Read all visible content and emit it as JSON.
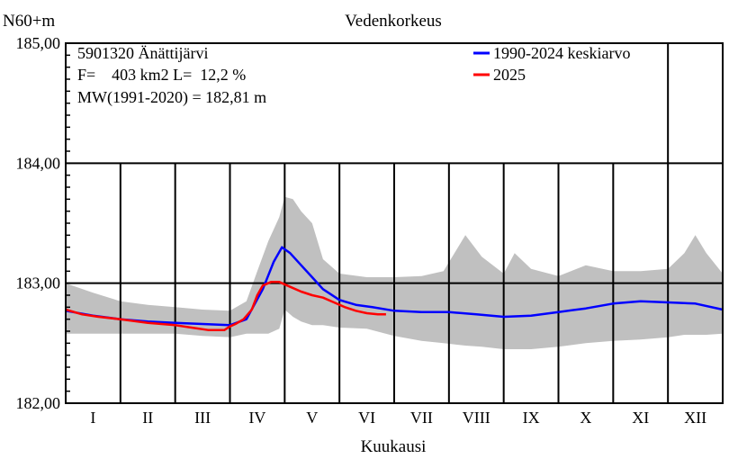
{
  "chart_data": {
    "type": "line",
    "title": "Vedenkorkeus",
    "ylabel": "N60+m",
    "xlabel": "Kuukausi",
    "ylim": [
      182.0,
      185.0
    ],
    "xlim": [
      0,
      12
    ],
    "yticks": [
      "182,00",
      "183,00",
      "184,00",
      "185,00"
    ],
    "categories": [
      "I",
      "II",
      "III",
      "IV",
      "V",
      "VI",
      "VII",
      "VIII",
      "IX",
      "X",
      "XI",
      "XII"
    ],
    "grid": true,
    "legend_position": "top-right",
    "info": [
      "5901320 Änättijärvi",
      "F=    403 km2 L=  12,2 %",
      "MW(1991-2020) = 182,81 m"
    ],
    "colors": {
      "mean": "#0000ff",
      "current": "#ff0000",
      "band": "#c0c0c0"
    },
    "band": {
      "x": [
        0,
        0.5,
        1,
        1.5,
        2,
        2.5,
        3,
        3.3,
        3.5,
        3.7,
        3.9,
        4.0,
        4.15,
        4.3,
        4.5,
        4.7,
        5,
        5.5,
        6,
        6.5,
        6.9,
        7.3,
        7.6,
        8,
        8.2,
        8.5,
        9,
        9.5,
        10,
        10.5,
        11,
        11.3,
        11.5,
        11.7,
        12
      ],
      "max": [
        183.0,
        182.92,
        182.85,
        182.82,
        182.8,
        182.78,
        182.77,
        182.85,
        183.1,
        183.35,
        183.55,
        183.72,
        183.7,
        183.6,
        183.5,
        183.2,
        183.08,
        183.05,
        183.05,
        183.06,
        183.1,
        183.4,
        183.22,
        183.08,
        183.25,
        183.12,
        183.06,
        183.15,
        183.1,
        183.1,
        183.12,
        183.25,
        183.4,
        183.25,
        183.08
      ],
      "min": [
        182.58,
        182.58,
        182.58,
        182.58,
        182.58,
        182.56,
        182.55,
        182.58,
        182.58,
        182.58,
        182.62,
        182.78,
        182.72,
        182.68,
        182.65,
        182.65,
        182.63,
        182.62,
        182.56,
        182.52,
        182.5,
        182.48,
        182.47,
        182.45,
        182.45,
        182.45,
        182.47,
        182.5,
        182.52,
        182.53,
        182.55,
        182.57,
        182.57,
        182.57,
        182.58
      ]
    },
    "series": [
      {
        "name": "1990-2024 keskiarvo",
        "x": [
          0,
          0.5,
          1,
          1.5,
          2,
          2.5,
          3,
          3.3,
          3.6,
          3.8,
          3.95,
          4.1,
          4.3,
          4.5,
          4.7,
          5,
          5.3,
          5.6,
          6,
          6.5,
          7,
          7.5,
          8,
          8.5,
          9,
          9.5,
          10,
          10.5,
          11,
          11.5,
          12
        ],
        "y": [
          182.77,
          182.73,
          182.7,
          182.68,
          182.67,
          182.66,
          182.65,
          182.7,
          182.95,
          183.18,
          183.3,
          183.25,
          183.15,
          183.05,
          182.95,
          182.86,
          182.82,
          182.8,
          182.77,
          182.76,
          182.76,
          182.74,
          182.72,
          182.73,
          182.76,
          182.79,
          182.83,
          182.85,
          182.84,
          182.83,
          182.78
        ]
      },
      {
        "name": "2025",
        "x": [
          0,
          0.3,
          0.6,
          1.0,
          1.5,
          2.0,
          2.3,
          2.6,
          2.9,
          3.0,
          3.1,
          3.25,
          3.4,
          3.5,
          3.6,
          3.75,
          3.9,
          4.1,
          4.3,
          4.5,
          4.7,
          4.9,
          5.1,
          5.3,
          5.5,
          5.7,
          5.85
        ],
        "y": [
          182.78,
          182.74,
          182.72,
          182.7,
          182.67,
          182.65,
          182.63,
          182.61,
          182.61,
          182.64,
          182.66,
          182.7,
          182.78,
          182.9,
          182.98,
          183.01,
          183.01,
          182.97,
          182.93,
          182.9,
          182.88,
          182.84,
          182.8,
          182.77,
          182.75,
          182.74,
          182.74
        ]
      }
    ]
  }
}
